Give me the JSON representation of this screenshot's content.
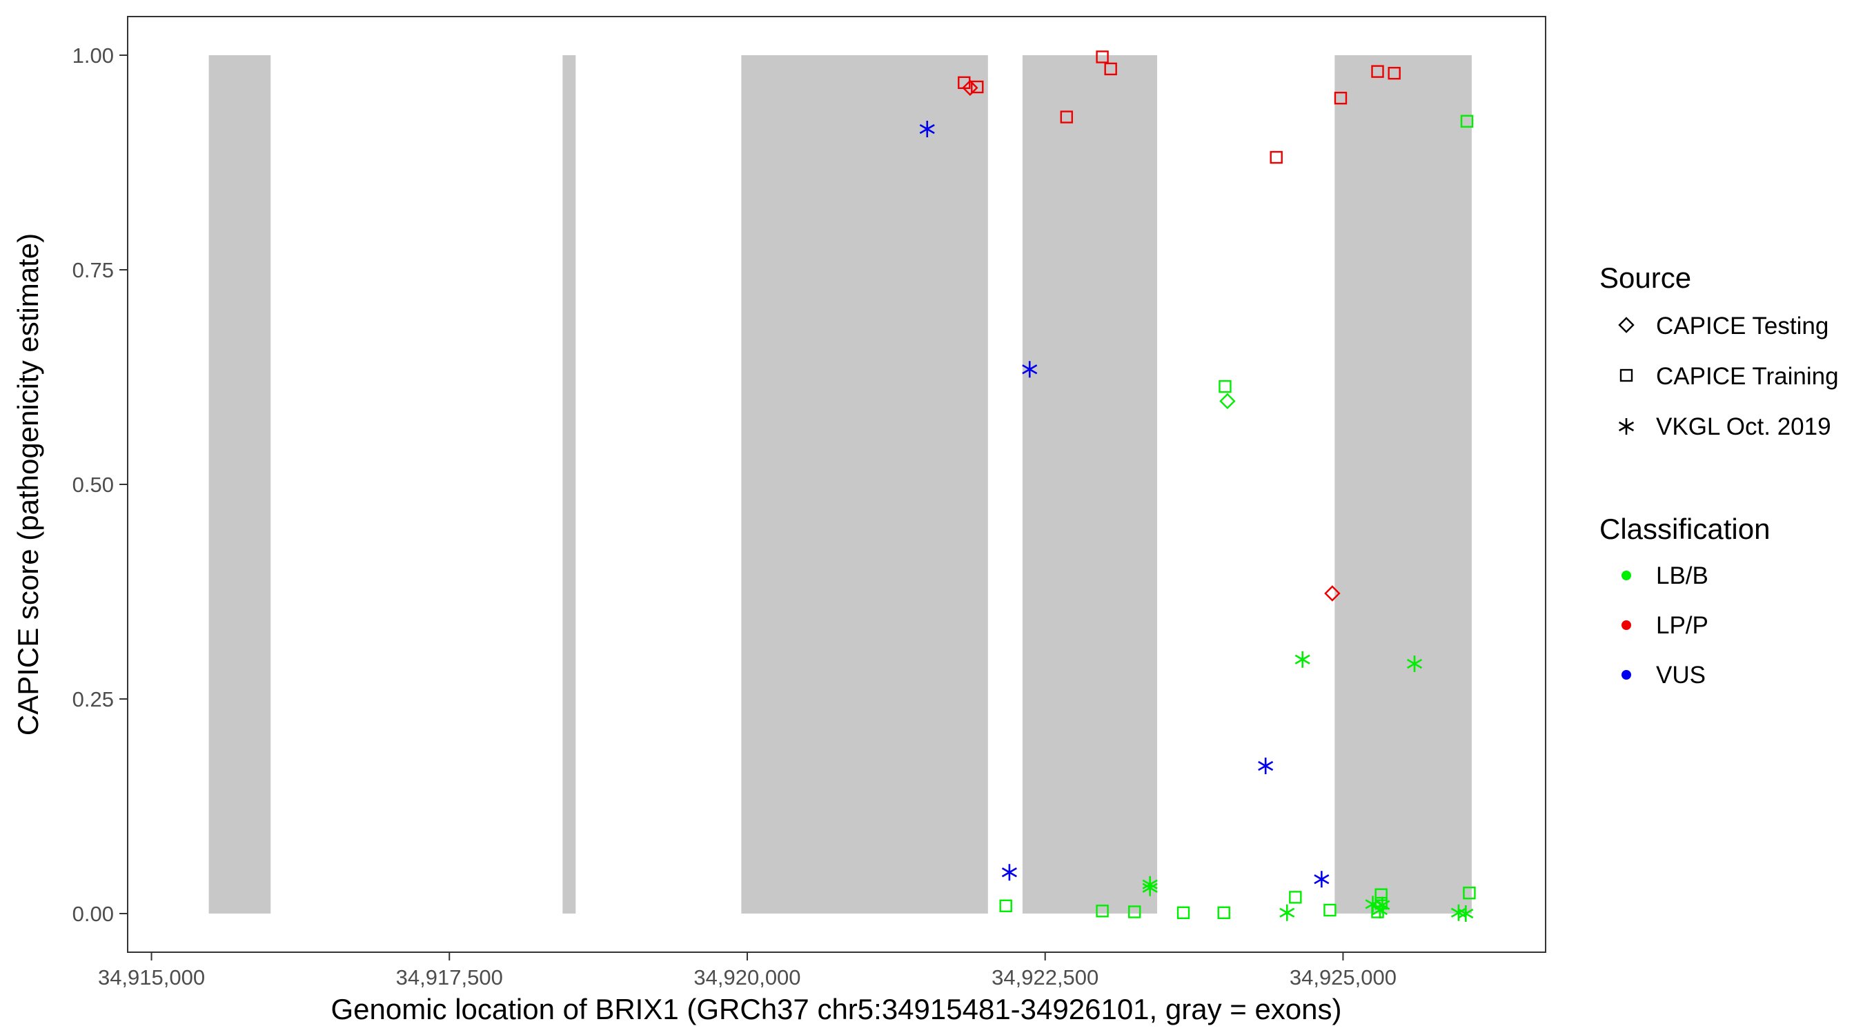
{
  "chart_data": {
    "type": "scatter",
    "title": "",
    "xlabel": "Genomic location of BRIX1 (GRCh37 chr5:34915481-34926101, gray = exons)",
    "ylabel": "CAPICE score (pathogenicity estimate)",
    "xlim": [
      34914800,
      34926700
    ],
    "ylim": [
      -0.045,
      1.045
    ],
    "x_ticks": [
      34915000,
      34917500,
      34920000,
      34922500,
      34925000
    ],
    "x_tick_labels": [
      "34,915,000",
      "34,917,500",
      "34,920,000",
      "34,922,500",
      "34,925,000"
    ],
    "y_ticks": [
      0,
      0.25,
      0.5,
      0.75,
      1
    ],
    "y_tick_labels": [
      "0.00",
      "0.25",
      "0.50",
      "0.75",
      "1.00"
    ],
    "grid": false,
    "legend_position": "right",
    "exons": [
      [
        34915481,
        34916000
      ],
      [
        34918450,
        34918560
      ],
      [
        34919950,
        34922020
      ],
      [
        34922310,
        34923440
      ],
      [
        34924930,
        34926080
      ]
    ],
    "legend": {
      "source": {
        "title": "Source",
        "items": [
          {
            "label": "CAPICE Testing",
            "shape": "diamond"
          },
          {
            "label": "CAPICE Training",
            "shape": "square"
          },
          {
            "label": "VKGL Oct. 2019",
            "shape": "asterisk"
          }
        ]
      },
      "classification": {
        "title": "Classification",
        "items": [
          {
            "label": "LB/B",
            "color": "#00ee00"
          },
          {
            "label": "LP/P",
            "color": "#ee0000"
          },
          {
            "label": "VUS",
            "color": "#0000ee"
          }
        ]
      }
    },
    "colors": {
      "LB/B": "#00ee00",
      "LP/P": "#ee0000",
      "VUS": "#0000ee"
    },
    "points": [
      {
        "x": 34921820,
        "y": 0.968,
        "source": "CAPICE Training",
        "class": "LP/P"
      },
      {
        "x": 34921870,
        "y": 0.962,
        "source": "CAPICE Testing",
        "class": "LP/P"
      },
      {
        "x": 34921930,
        "y": 0.963,
        "source": "CAPICE Training",
        "class": "LP/P"
      },
      {
        "x": 34922680,
        "y": 0.928,
        "source": "CAPICE Training",
        "class": "LP/P"
      },
      {
        "x": 34922980,
        "y": 0.998,
        "source": "CAPICE Training",
        "class": "LP/P"
      },
      {
        "x": 34923050,
        "y": 0.984,
        "source": "CAPICE Training",
        "class": "LP/P"
      },
      {
        "x": 34924440,
        "y": 0.881,
        "source": "CAPICE Training",
        "class": "LP/P"
      },
      {
        "x": 34924980,
        "y": 0.95,
        "source": "CAPICE Training",
        "class": "LP/P"
      },
      {
        "x": 34925290,
        "y": 0.981,
        "source": "CAPICE Training",
        "class": "LP/P"
      },
      {
        "x": 34925430,
        "y": 0.979,
        "source": "CAPICE Training",
        "class": "LP/P"
      },
      {
        "x": 34924910,
        "y": 0.373,
        "source": "CAPICE Testing",
        "class": "LP/P"
      },
      {
        "x": 34921510,
        "y": 0.914,
        "source": "VKGL Oct. 2019",
        "class": "VUS"
      },
      {
        "x": 34922370,
        "y": 0.634,
        "source": "VKGL Oct. 2019",
        "class": "VUS"
      },
      {
        "x": 34924350,
        "y": 0.172,
        "source": "VKGL Oct. 2019",
        "class": "VUS"
      },
      {
        "x": 34922200,
        "y": 0.048,
        "source": "VKGL Oct. 2019",
        "class": "VUS"
      },
      {
        "x": 34924820,
        "y": 0.04,
        "source": "VKGL Oct. 2019",
        "class": "VUS"
      },
      {
        "x": 34926040,
        "y": 0.923,
        "source": "CAPICE Training",
        "class": "LB/B"
      },
      {
        "x": 34924010,
        "y": 0.614,
        "source": "CAPICE Training",
        "class": "LB/B"
      },
      {
        "x": 34924030,
        "y": 0.597,
        "source": "CAPICE Testing",
        "class": "LB/B"
      },
      {
        "x": 34924660,
        "y": 0.296,
        "source": "VKGL Oct. 2019",
        "class": "LB/B"
      },
      {
        "x": 34925600,
        "y": 0.291,
        "source": "VKGL Oct. 2019",
        "class": "LB/B"
      },
      {
        "x": 34923380,
        "y": 0.034,
        "source": "VKGL Oct. 2019",
        "class": "LB/B"
      },
      {
        "x": 34923380,
        "y": 0.03,
        "source": "VKGL Oct. 2019",
        "class": "LB/B"
      },
      {
        "x": 34922170,
        "y": 0.009,
        "source": "CAPICE Training",
        "class": "LB/B"
      },
      {
        "x": 34922980,
        "y": 0.003,
        "source": "CAPICE Training",
        "class": "LB/B"
      },
      {
        "x": 34923250,
        "y": 0.002,
        "source": "CAPICE Training",
        "class": "LB/B"
      },
      {
        "x": 34923660,
        "y": 0.001,
        "source": "CAPICE Training",
        "class": "LB/B"
      },
      {
        "x": 34924000,
        "y": 0.001,
        "source": "CAPICE Training",
        "class": "LB/B"
      },
      {
        "x": 34924600,
        "y": 0.019,
        "source": "CAPICE Training",
        "class": "LB/B"
      },
      {
        "x": 34924530,
        "y": 0.001,
        "source": "VKGL Oct. 2019",
        "class": "LB/B"
      },
      {
        "x": 34924890,
        "y": 0.004,
        "source": "CAPICE Training",
        "class": "LB/B"
      },
      {
        "x": 34925250,
        "y": 0.011,
        "source": "VKGL Oct. 2019",
        "class": "LB/B"
      },
      {
        "x": 34925320,
        "y": 0.022,
        "source": "CAPICE Training",
        "class": "LB/B"
      },
      {
        "x": 34925320,
        "y": 0.012,
        "source": "CAPICE Training",
        "class": "LB/B"
      },
      {
        "x": 34925290,
        "y": 0.002,
        "source": "CAPICE Training",
        "class": "LB/B"
      },
      {
        "x": 34925330,
        "y": 0.01,
        "source": "VKGL Oct. 2019",
        "class": "LB/B"
      },
      {
        "x": 34925310,
        "y": 0.004,
        "source": "VKGL Oct. 2019",
        "class": "LB/B"
      },
      {
        "x": 34925970,
        "y": 0.001,
        "source": "VKGL Oct. 2019",
        "class": "LB/B"
      },
      {
        "x": 34926030,
        "y": 0.0,
        "source": "VKGL Oct. 2019",
        "class": "LB/B"
      },
      {
        "x": 34926060,
        "y": 0.024,
        "source": "CAPICE Training",
        "class": "LB/B"
      }
    ]
  }
}
